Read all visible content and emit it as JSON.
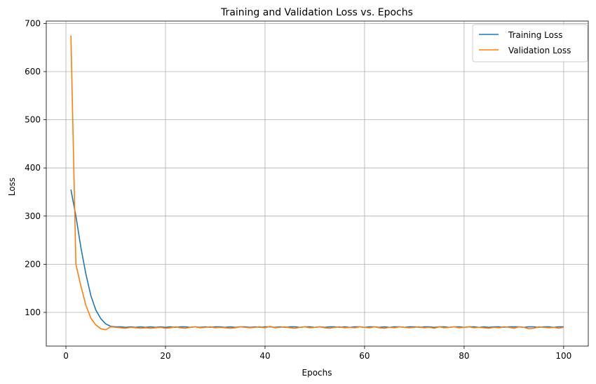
{
  "chart_data": {
    "type": "line",
    "title": "Training and Validation Loss vs. Epochs",
    "xlabel": "Epochs",
    "ylabel": "Loss",
    "xlim": [
      -3.95,
      104.95
    ],
    "ylim": [
      30,
      705
    ],
    "xticks": [
      0,
      20,
      40,
      60,
      80,
      100
    ],
    "yticks": [
      100,
      200,
      300,
      400,
      500,
      600,
      700
    ],
    "grid": true,
    "legend_position": "top-right",
    "series": [
      {
        "name": "Training Loss",
        "color": "#1f77b4",
        "x": [
          1,
          2,
          3,
          4,
          5,
          6,
          7,
          8,
          9,
          10,
          11,
          12,
          13,
          14,
          15,
          16,
          17,
          18,
          19,
          20,
          21,
          22,
          23,
          24,
          25,
          26,
          27,
          28,
          29,
          30,
          31,
          32,
          33,
          34,
          35,
          36,
          37,
          38,
          39,
          40,
          41,
          42,
          43,
          44,
          45,
          46,
          47,
          48,
          49,
          50,
          51,
          52,
          53,
          54,
          55,
          56,
          57,
          58,
          59,
          60,
          61,
          62,
          63,
          64,
          65,
          66,
          67,
          68,
          69,
          70,
          71,
          72,
          73,
          74,
          75,
          76,
          77,
          78,
          79,
          80,
          81,
          82,
          83,
          84,
          85,
          86,
          87,
          88,
          89,
          90,
          91,
          92,
          93,
          94,
          95,
          96,
          97,
          98,
          99,
          100
        ],
        "values": [
          355,
          300,
          235,
          180,
          135,
          105,
          87,
          76,
          71,
          70,
          70,
          69,
          70,
          69,
          70,
          69,
          70,
          69,
          70,
          69,
          70,
          69,
          70,
          70,
          69,
          70,
          69,
          70,
          69,
          70,
          70,
          69,
          70,
          69,
          70,
          70,
          69,
          70,
          69,
          70,
          70,
          69,
          70,
          69,
          70,
          70,
          69,
          70,
          70,
          69,
          70,
          69,
          70,
          70,
          69,
          70,
          69,
          70,
          70,
          69,
          70,
          70,
          69,
          70,
          69,
          70,
          70,
          69,
          70,
          70,
          69,
          70,
          70,
          69,
          70,
          70,
          69,
          70,
          70,
          69,
          70,
          70,
          69,
          70,
          69,
          70,
          70,
          69,
          70,
          70,
          70,
          69,
          70,
          70,
          69,
          70,
          70,
          69,
          70,
          70
        ]
      },
      {
        "name": "Validation Loss",
        "color": "#ff7f0e",
        "x": [
          1,
          2,
          3,
          4,
          5,
          6,
          7,
          8,
          9,
          10,
          11,
          12,
          13,
          14,
          15,
          16,
          17,
          18,
          19,
          20,
          21,
          22,
          23,
          24,
          25,
          26,
          27,
          28,
          29,
          30,
          31,
          32,
          33,
          34,
          35,
          36,
          37,
          38,
          39,
          40,
          41,
          42,
          43,
          44,
          45,
          46,
          47,
          48,
          49,
          50,
          51,
          52,
          53,
          54,
          55,
          56,
          57,
          58,
          59,
          60,
          61,
          62,
          63,
          64,
          65,
          66,
          67,
          68,
          69,
          70,
          71,
          72,
          73,
          74,
          75,
          76,
          77,
          78,
          79,
          80,
          81,
          82,
          83,
          84,
          85,
          86,
          87,
          88,
          89,
          90,
          91,
          92,
          93,
          94,
          95,
          96,
          97,
          98,
          99,
          100
        ],
        "values": [
          675,
          200,
          155,
          115,
          88,
          74,
          66,
          64,
          70,
          69,
          68,
          67,
          69,
          68,
          67,
          68,
          67,
          68,
          69,
          67,
          68,
          70,
          68,
          67,
          69,
          70,
          68,
          69,
          70,
          68,
          69,
          68,
          67,
          68,
          70,
          69,
          68,
          69,
          70,
          68,
          71,
          68,
          69,
          70,
          68,
          67,
          69,
          70,
          68,
          69,
          70,
          68,
          67,
          69,
          70,
          68,
          69,
          68,
          70,
          69,
          68,
          70,
          68,
          67,
          69,
          68,
          70,
          69,
          68,
          69,
          70,
          68,
          69,
          67,
          70,
          68,
          69,
          70,
          68,
          69,
          70,
          68,
          69,
          68,
          67,
          69,
          68,
          70,
          69,
          67,
          70,
          69,
          66,
          67,
          70,
          69,
          68,
          69,
          67,
          69
        ]
      }
    ]
  }
}
